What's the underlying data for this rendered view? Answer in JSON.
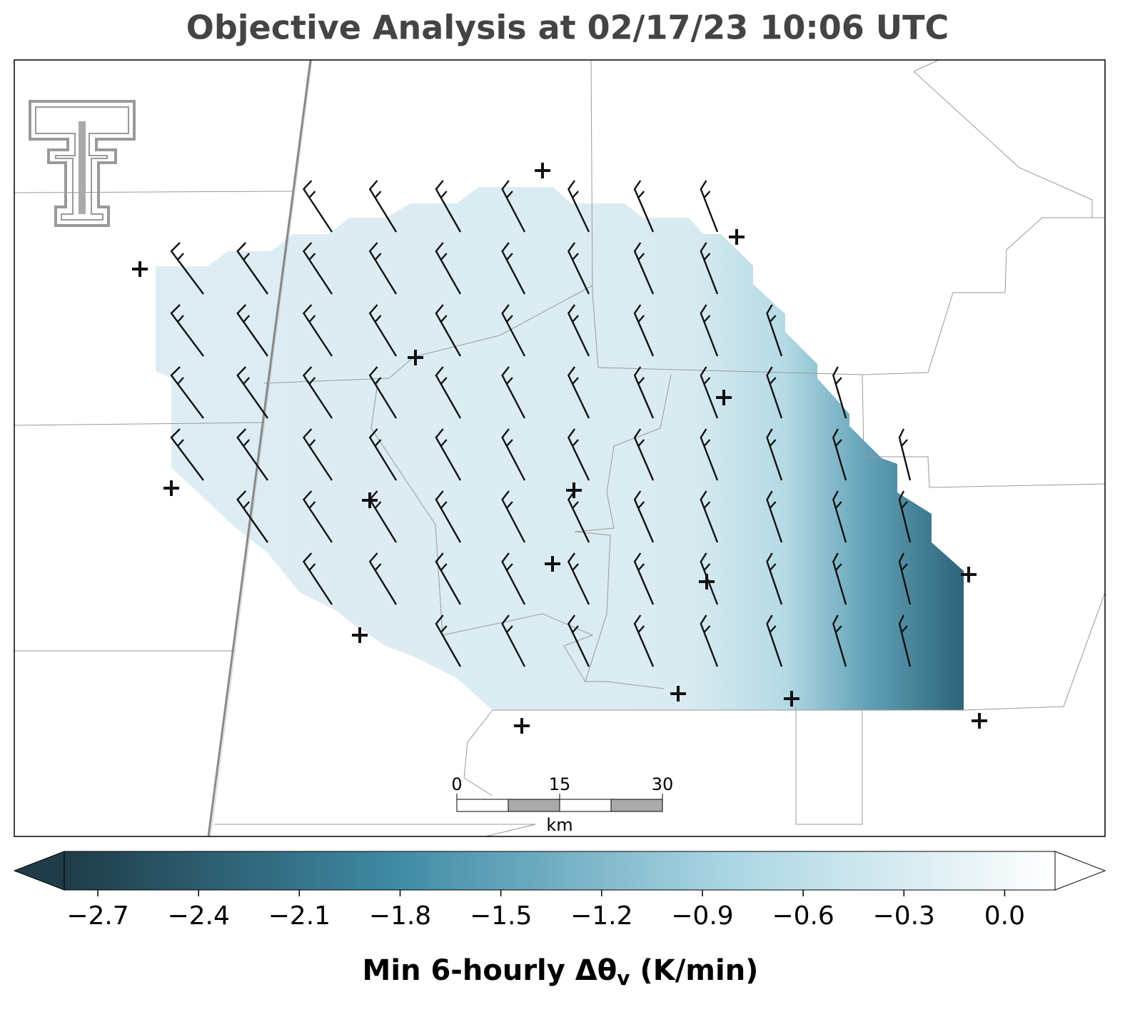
{
  "title": "Objective Analysis at 02/17/23 10:06 UTC",
  "map": {
    "scale_bar": {
      "xlim": [
        0,
        30
      ],
      "ticks": [
        0,
        15,
        30
      ],
      "unit": "km"
    }
  },
  "colorbar": {
    "lim": [
      -2.8,
      0.15
    ],
    "colors": [
      "#1f3c48",
      "#3f8aa5",
      "#a9d5e2",
      "#ffffff"
    ],
    "ticks": [
      {
        "value": -2.7,
        "label": "−2.7"
      },
      {
        "value": -2.4,
        "label": "−2.4"
      },
      {
        "value": -2.1,
        "label": "−2.1"
      },
      {
        "value": -1.8,
        "label": "−1.8"
      },
      {
        "value": -1.5,
        "label": "−1.5"
      },
      {
        "value": -1.2,
        "label": "−1.2"
      },
      {
        "value": -0.9,
        "label": "−0.9"
      },
      {
        "value": -0.6,
        "label": "−0.6"
      },
      {
        "value": -0.3,
        "label": "−0.3"
      },
      {
        "value": 0.0,
        "label": "0.0"
      }
    ],
    "label": {
      "main": "Min 6-hourly Δθ",
      "subscript": "v",
      "units": " (K/min)"
    }
  }
}
